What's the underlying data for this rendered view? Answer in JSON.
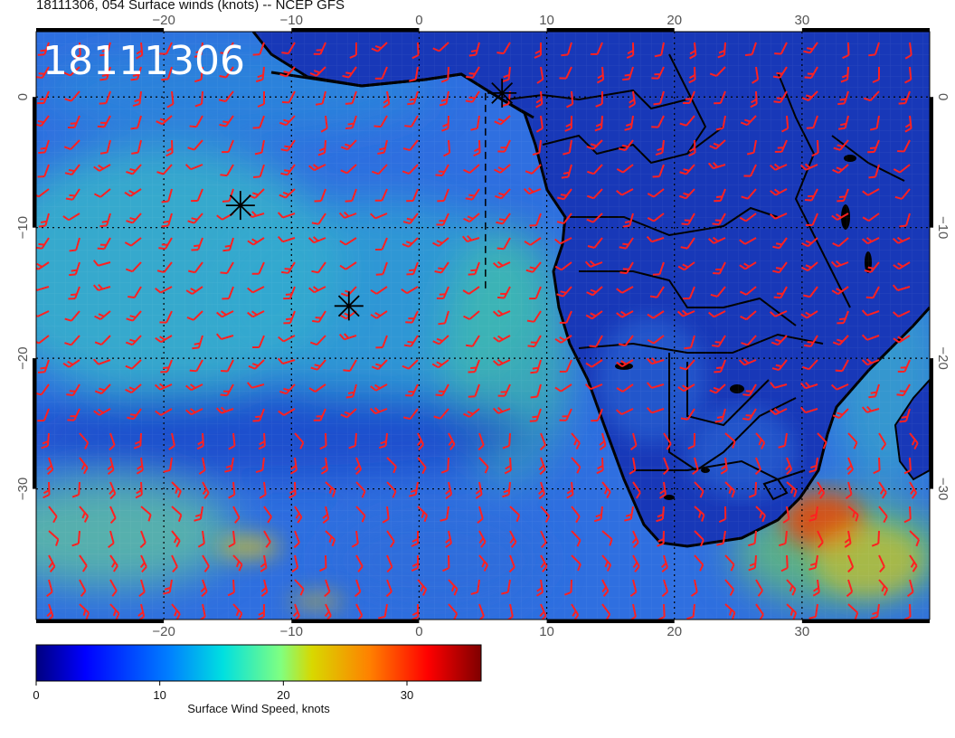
{
  "title": "18111306, 054 Surface winds (knots) -- NCEP GFS",
  "stamp": "18111306",
  "map": {
    "lon_range": [
      -30,
      40
    ],
    "lat_range": [
      -40,
      5
    ],
    "lon_ticks": [
      -20,
      -10,
      0,
      10,
      20,
      30
    ],
    "lat_ticks": [
      0,
      -10,
      -20,
      -30
    ],
    "lon_tick_labels": [
      "−20",
      "−10",
      "0",
      "10",
      "20",
      "30"
    ],
    "lat_tick_labels": [
      "0",
      "−10",
      "−20",
      "−30"
    ],
    "storm_markers": [
      {
        "lon": 6.5,
        "lat": 0.3
      },
      {
        "lon": -14,
        "lat": -8.3
      },
      {
        "lon": -5.5,
        "lat": -16
      }
    ],
    "dashed_line": {
      "lon": 5.2,
      "lat_from": 0.3,
      "lat_to": -15
    },
    "colors": {
      "ocean_base": "#2f6fe0",
      "land_base": "#1838b8",
      "barb": "#ff2020",
      "coast": "#000000",
      "high_wind": "#e04a10"
    }
  },
  "colorbar": {
    "label": "Surface Wind Speed, knots",
    "ticks": [
      "0",
      "10",
      "20",
      "30"
    ],
    "tick_values": [
      0,
      10,
      20,
      30
    ],
    "range": [
      0,
      36
    ]
  }
}
